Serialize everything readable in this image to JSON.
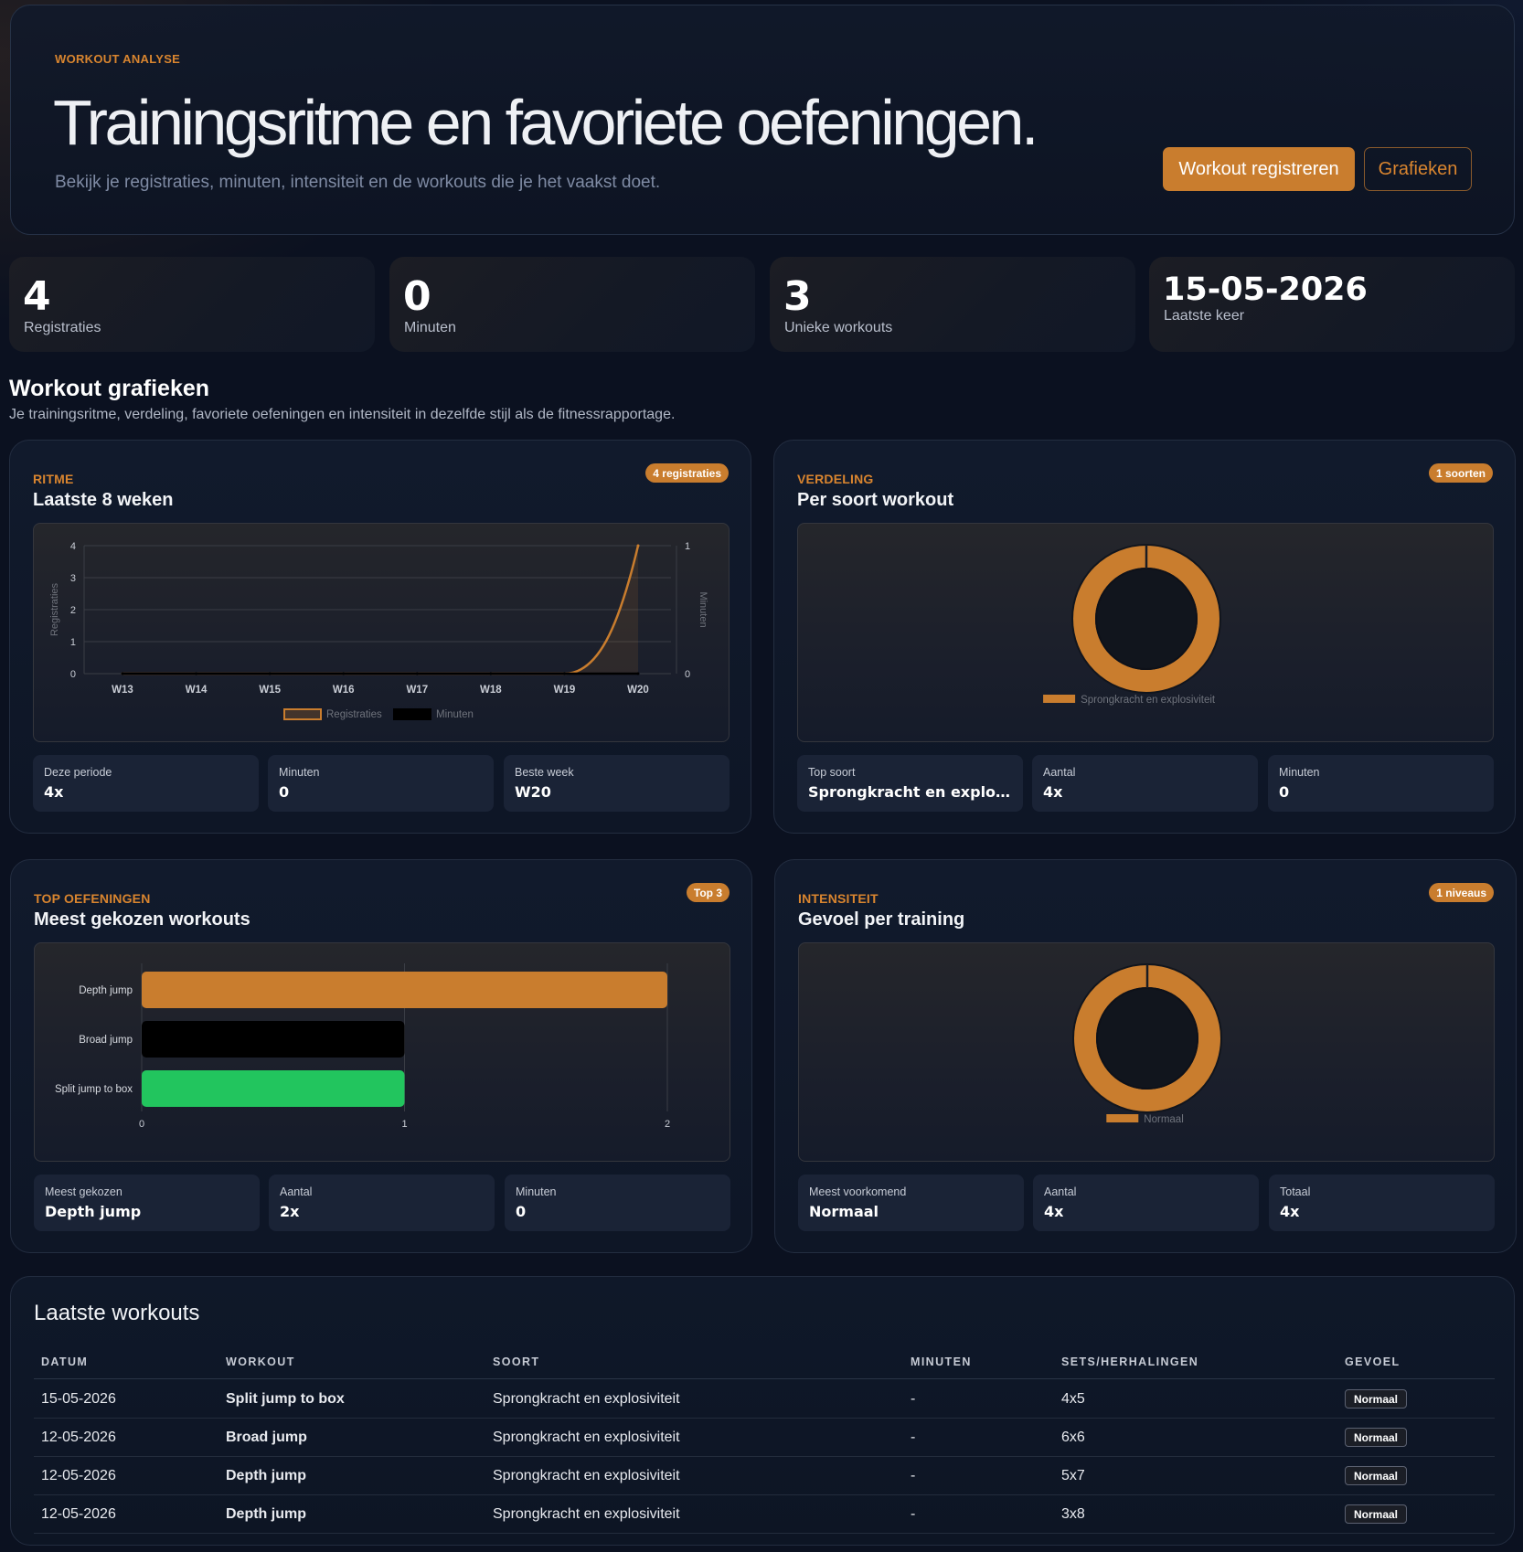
{
  "hero": {
    "eyebrow": "WORKOUT ANALYSE",
    "title": "Trainingsritme en favoriete oefeningen.",
    "subtitle": "Bekijk je registraties, minuten, intensiteit en de workouts die je het vaakst doet.",
    "primary_button": "Workout registreren",
    "secondary_button": "Grafieken"
  },
  "stats": [
    {
      "value": "4",
      "label": "Registraties"
    },
    {
      "value": "0",
      "label": "Minuten"
    },
    {
      "value": "3",
      "label": "Unieke workouts"
    },
    {
      "value": "15-05-2026",
      "label": "Laatste keer"
    }
  ],
  "section": {
    "title": "Workout grafieken",
    "subtitle": "Je trainingsritme, verdeling, favoriete oefeningen en intensiteit in dezelfde stijl als de fitnessrapportage."
  },
  "colors": {
    "accent": "#c97d2e",
    "black": "#000000",
    "green": "#22c55e"
  },
  "cards": {
    "ritme": {
      "eyebrow": "RITME",
      "title": "Laatste 8 weken",
      "badge": "4 registraties",
      "stats": [
        {
          "label": "Deze periode",
          "value": "4x"
        },
        {
          "label": "Minuten",
          "value": "0"
        },
        {
          "label": "Beste week",
          "value": "W20"
        }
      ]
    },
    "verdeling": {
      "eyebrow": "VERDELING",
      "title": "Per soort workout",
      "badge": "1 soorten",
      "stats": [
        {
          "label": "Top soort",
          "value": "Sprongkracht en explosiviteit"
        },
        {
          "label": "Aantal",
          "value": "4x"
        },
        {
          "label": "Minuten",
          "value": "0"
        }
      ]
    },
    "top": {
      "eyebrow": "TOP OEFENINGEN",
      "title": "Meest gekozen workouts",
      "badge": "Top 3",
      "stats": [
        {
          "label": "Meest gekozen",
          "value": "Depth jump"
        },
        {
          "label": "Aantal",
          "value": "2x"
        },
        {
          "label": "Minuten",
          "value": "0"
        }
      ]
    },
    "intensiteit": {
      "eyebrow": "INTENSITEIT",
      "title": "Gevoel per training",
      "badge": "1 niveaus",
      "stats": [
        {
          "label": "Meest voorkomend",
          "value": "Normaal"
        },
        {
          "label": "Aantal",
          "value": "4x"
        },
        {
          "label": "Totaal",
          "value": "4x"
        }
      ]
    }
  },
  "chart_data": [
    {
      "type": "line",
      "categories": [
        "W13",
        "W14",
        "W15",
        "W16",
        "W17",
        "W18",
        "W19",
        "W20"
      ],
      "series": [
        {
          "name": "Registraties",
          "values": [
            0,
            0,
            0,
            0,
            0,
            0,
            0,
            4
          ],
          "axis": "left",
          "color": "#c97d2e"
        },
        {
          "name": "Minuten",
          "values": [
            0,
            0,
            0,
            0,
            0,
            0,
            0,
            0
          ],
          "axis": "right",
          "color": "#000000"
        }
      ],
      "ylabel": "Registraties",
      "y2label": "Minuten",
      "ylim": [
        0,
        4
      ],
      "y2lim": [
        0,
        1
      ],
      "yticks": [
        "0",
        "1",
        "2",
        "3",
        "4"
      ],
      "y2ticks": [
        "0",
        "1"
      ],
      "legend": "bottom",
      "grid": true
    },
    {
      "type": "pie",
      "categories": [
        "Sprongkracht en explosiviteit"
      ],
      "values": [
        4
      ],
      "colors": [
        "#c97d2e"
      ],
      "legend": "bottom"
    },
    {
      "type": "bar",
      "orientation": "horizontal",
      "categories": [
        "Depth jump",
        "Broad jump",
        "Split jump to box"
      ],
      "values": [
        2,
        1,
        1
      ],
      "colors": [
        "#c97d2e",
        "#000000",
        "#22c55e"
      ],
      "xlim": [
        0,
        2
      ],
      "xticks": [
        "0",
        "1",
        "2"
      ],
      "grid": true
    },
    {
      "type": "pie",
      "categories": [
        "Normaal"
      ],
      "values": [
        4
      ],
      "colors": [
        "#c97d2e"
      ],
      "legend": "bottom"
    }
  ],
  "table": {
    "title": "Laatste workouts",
    "headers": [
      "DATUM",
      "WORKOUT",
      "SOORT",
      "MINUTEN",
      "SETS/HERHALINGEN",
      "GEVOEL"
    ],
    "rows": [
      {
        "datum": "15-05-2026",
        "workout": "Split jump to box",
        "soort": "Sprongkracht en explosiviteit",
        "minuten": "-",
        "sets": "4x5",
        "gevoel": "Normaal"
      },
      {
        "datum": "12-05-2026",
        "workout": "Broad jump",
        "soort": "Sprongkracht en explosiviteit",
        "minuten": "-",
        "sets": "6x6",
        "gevoel": "Normaal"
      },
      {
        "datum": "12-05-2026",
        "workout": "Depth jump",
        "soort": "Sprongkracht en explosiviteit",
        "minuten": "-",
        "sets": "5x7",
        "gevoel": "Normaal"
      },
      {
        "datum": "12-05-2026",
        "workout": "Depth jump",
        "soort": "Sprongkracht en explosiviteit",
        "minuten": "-",
        "sets": "3x8",
        "gevoel": "Normaal"
      }
    ]
  }
}
